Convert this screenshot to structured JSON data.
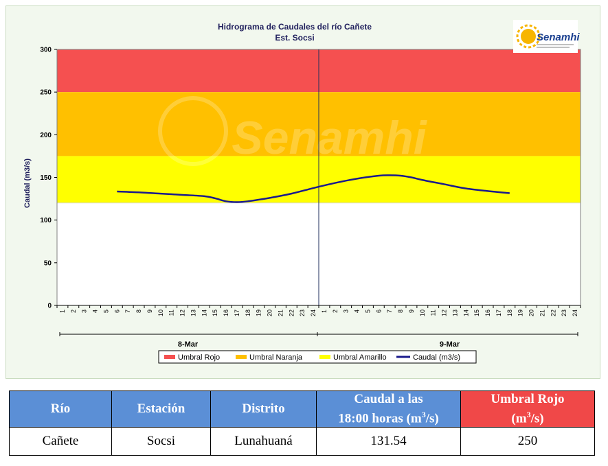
{
  "chart_data": {
    "type": "line",
    "title": "Hidrograma de Caudales  del río Cañete",
    "subtitle": "Est. Socsi",
    "ylabel": "Caudal  (m3/s)",
    "ylim": [
      0,
      300
    ],
    "yticks": [
      "0",
      "50",
      "100",
      "150",
      "200",
      "250",
      "300"
    ],
    "xticks_hours": [
      "1",
      "2",
      "3",
      "4",
      "5",
      "6",
      "7",
      "8",
      "9",
      "10",
      "11",
      "12",
      "13",
      "14",
      "15",
      "16",
      "17",
      "18",
      "19",
      "20",
      "21",
      "22",
      "23",
      "24"
    ],
    "days": [
      "8-Mar",
      "9-Mar"
    ],
    "thresholds": [
      {
        "name": "Umbral Rojo",
        "from": 250,
        "to": 300,
        "color": "#f55050"
      },
      {
        "name": "Umbral Naranja",
        "from": 175,
        "to": 250,
        "color": "#ffc000"
      },
      {
        "name": "Umbral Amarillo",
        "from": 120,
        "to": 175,
        "color": "#ffff00"
      }
    ],
    "series": [
      {
        "name": "Caudal (m3/s)",
        "color": "#1a1a8c",
        "x": [
          6,
          8,
          10,
          12,
          14,
          15,
          16,
          17,
          18,
          20,
          22,
          24,
          26,
          28,
          30,
          31,
          32,
          33,
          34,
          36,
          38,
          40,
          42
        ],
        "values": [
          133.5,
          132.5,
          131,
          129.5,
          128,
          125.5,
          122,
          121,
          122,
          126,
          131,
          137.5,
          143.5,
          148.5,
          152,
          152.5,
          152,
          150,
          147,
          142,
          137,
          134,
          131.5
        ]
      }
    ],
    "legend": [
      "Umbral Rojo",
      "Umbral Naranja",
      "Umbral Amarillo",
      "Caudal (m3/s)"
    ],
    "legend_position": "bottom",
    "watermark": "Senamhi"
  },
  "logo": {
    "text": "Senamhi"
  },
  "table": {
    "headers": {
      "rio": "Río",
      "estacion": "Estación",
      "distrito": "Distrito",
      "caudal_line1": "Caudal a las",
      "caudal_line2": "18:00 horas (m",
      "caudal_sup": "3",
      "caudal_end": "/s)",
      "umbral_line1": "Umbral Rojo",
      "umbral_line2": "(m",
      "umbral_sup": "3",
      "umbral_end": "/s)"
    },
    "row": {
      "rio": "Cañete",
      "estacion": "Socsi",
      "distrito": "Lunahuaná",
      "caudal": "131.54",
      "umbral": "250"
    },
    "colors": {
      "header_blue": "#5b8fd6",
      "header_red": "#f04848"
    }
  }
}
